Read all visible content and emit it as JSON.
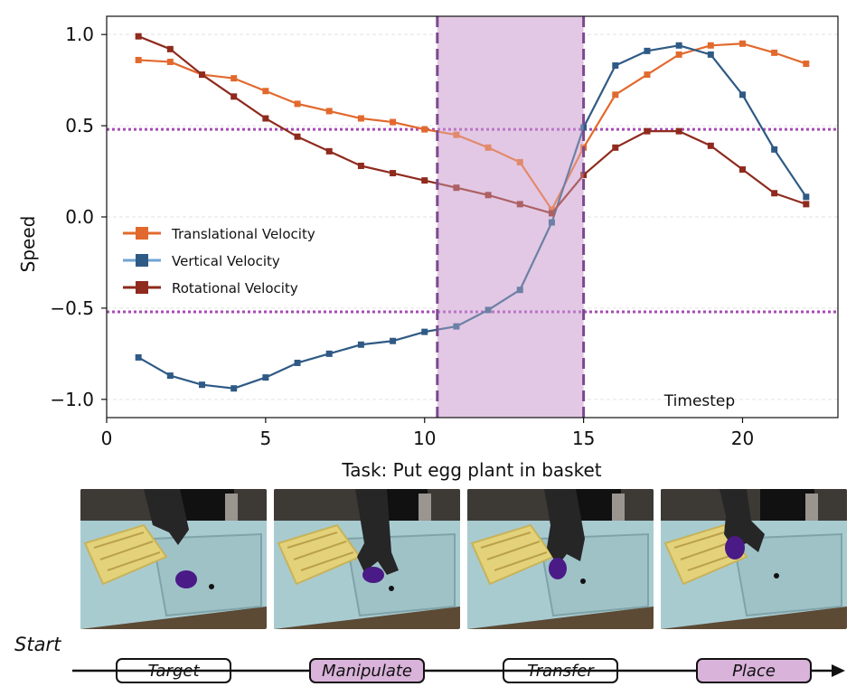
{
  "chart_data": {
    "type": "line",
    "xlabel": "Task: Put egg plant in basket",
    "ylabel": "Speed",
    "annotation": "Timestep",
    "xlim": [
      0,
      23
    ],
    "ylim": [
      -1.1,
      1.1
    ],
    "xticks": [
      0,
      5,
      10,
      15,
      20
    ],
    "yticks": [
      1.0,
      0.5,
      0.0,
      -0.5,
      -1.0
    ],
    "ytick_labels": [
      "1.0",
      "0.5",
      "0.0",
      "−0.5",
      "−1.0"
    ],
    "highlight_span": [
      10.4,
      15
    ],
    "threshold_lines": [
      0.48,
      -0.52
    ],
    "legend_position": "center-left",
    "x": [
      1,
      2,
      3,
      4,
      5,
      6,
      7,
      8,
      9,
      10,
      11,
      12,
      13,
      14,
      15,
      16,
      17,
      18,
      19,
      20,
      21,
      22
    ],
    "series": [
      {
        "name": "Translational Velocity",
        "color": "#e2692d",
        "values": [
          0.86,
          0.85,
          0.78,
          0.76,
          0.69,
          0.62,
          0.58,
          0.54,
          0.52,
          0.48,
          0.45,
          0.38,
          0.3,
          0.04,
          0.38,
          0.67,
          0.78,
          0.89,
          0.94,
          0.95,
          0.9,
          0.84
        ]
      },
      {
        "name": "Vertical Velocity",
        "color": "#2f5a85",
        "values": [
          -0.77,
          -0.87,
          -0.92,
          -0.94,
          -0.88,
          -0.8,
          -0.75,
          -0.7,
          -0.68,
          -0.63,
          -0.6,
          -0.51,
          -0.4,
          -0.03,
          0.49,
          0.83,
          0.91,
          0.94,
          0.89,
          0.67,
          0.37,
          0.11
        ]
      },
      {
        "name": "Rotational Velocity",
        "color": "#8f2a1e",
        "values": [
          0.99,
          0.92,
          0.78,
          0.66,
          0.54,
          0.44,
          0.36,
          0.28,
          0.24,
          0.2,
          0.16,
          0.12,
          0.07,
          0.02,
          0.23,
          0.38,
          0.47,
          0.47,
          0.39,
          0.26,
          0.13,
          0.07
        ]
      }
    ]
  },
  "stages": {
    "start_label": "Start",
    "items": [
      {
        "label": "Target",
        "highlighted": false
      },
      {
        "label": "Manipulate",
        "highlighted": true
      },
      {
        "label": "Transfer",
        "highlighted": false
      },
      {
        "label": "Place",
        "highlighted": true
      }
    ]
  },
  "colors": {
    "highlight_fill": "#e2c8e4",
    "highlight_border": "#7b4a8e",
    "threshold": "#a74ab5",
    "stage_highlight": "#d9b3da"
  }
}
